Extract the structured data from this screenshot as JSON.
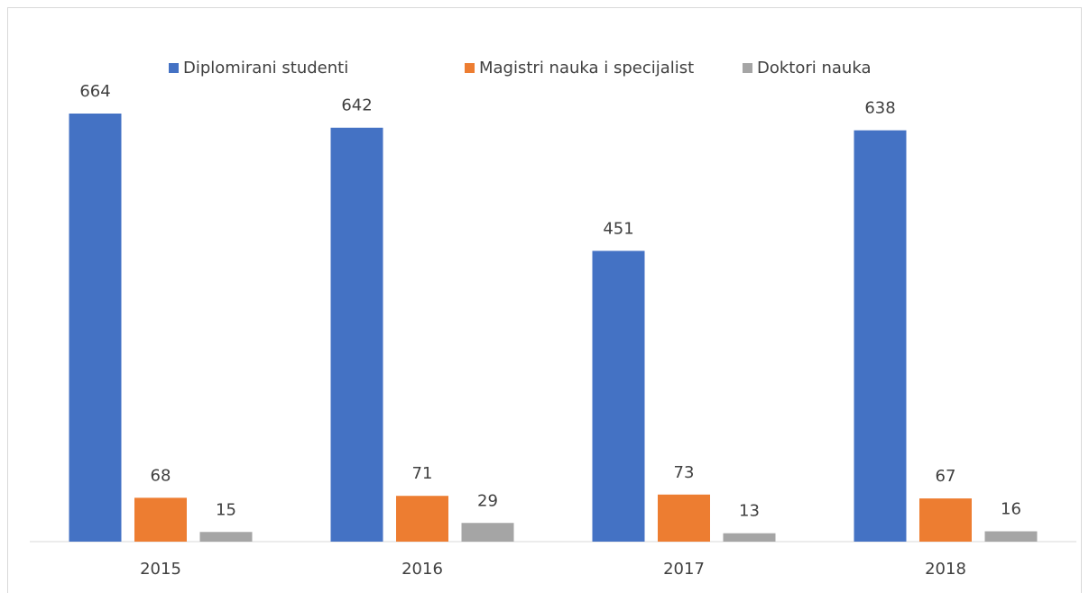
{
  "chart_data": {
    "type": "bar",
    "categories": [
      "2015",
      "2016",
      "2017",
      "2018"
    ],
    "series": [
      {
        "name": "Diplomirani studenti",
        "color": "#4472c4",
        "values": [
          664,
          642,
          451,
          638
        ]
      },
      {
        "name": "Magistri nauka i specijalist",
        "color": "#ed7d31",
        "values": [
          68,
          71,
          73,
          67
        ]
      },
      {
        "name": "Doktori nauka",
        "color": "#a5a5a5",
        "values": [
          15,
          29,
          13,
          16
        ]
      }
    ],
    "legend": "top"
  }
}
